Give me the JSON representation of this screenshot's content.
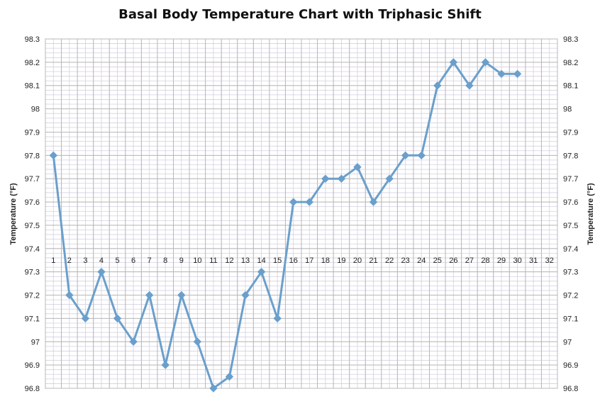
{
  "chart_data": {
    "type": "line",
    "title": "Basal Body Temperature Chart with Triphasic Shift",
    "ylabel_left": "Temperature (°F)",
    "ylabel_right": "Temperature (°F)",
    "xlabel": "",
    "categories": [
      "1",
      "2",
      "3",
      "4",
      "5",
      "6",
      "7",
      "8",
      "9",
      "10",
      "11",
      "12",
      "13",
      "14",
      "15",
      "16",
      "17",
      "18",
      "19",
      "20",
      "21",
      "22",
      "23",
      "24",
      "25",
      "26",
      "27",
      "28",
      "29",
      "30",
      "31",
      "32"
    ],
    "y_ticks": [
      "96.8",
      "96.9",
      "97",
      "97.1",
      "97.2",
      "97.3",
      "97.4",
      "97.5",
      "97.6",
      "97.7",
      "97.8",
      "97.9",
      "98",
      "98.1",
      "98.2",
      "98.3"
    ],
    "ylim": [
      96.8,
      98.3
    ],
    "x_axis_crosses_at": 97.4,
    "grid": true,
    "series": [
      {
        "name": "",
        "x": [
          1,
          2,
          3,
          4,
          5,
          6,
          7,
          8,
          9,
          10,
          11,
          12,
          13,
          14,
          15,
          16,
          17,
          18,
          19,
          20,
          21,
          22,
          23,
          24,
          25,
          26,
          27,
          28,
          29,
          30
        ],
        "values": [
          97.8,
          97.2,
          97.1,
          97.3,
          97.1,
          97.0,
          97.2,
          96.9,
          97.2,
          97.0,
          96.8,
          96.85,
          97.2,
          97.3,
          97.1,
          97.6,
          97.6,
          97.7,
          97.7,
          97.75,
          97.6,
          97.7,
          97.8,
          97.8,
          98.1,
          98.2,
          98.1,
          98.2,
          98.15,
          98.15
        ],
        "color": "#6a9fcc",
        "marker": "diamond"
      }
    ]
  }
}
